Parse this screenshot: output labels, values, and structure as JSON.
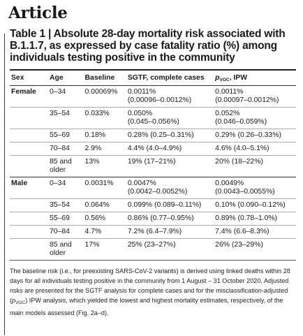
{
  "header": {
    "label": "Article"
  },
  "table": {
    "caption": "Table 1 | Absolute 28-day mortality risk associated with B.1.1.7, as expressed by case fatality ratio (%) among individuals testing positive in the community",
    "columns": [
      "Sex",
      "Age",
      "Baseline",
      "SGTF, complete cases",
      "p",
      "VOC",
      ", IPW"
    ],
    "groups": [
      {
        "sex": "Female",
        "rows": [
          {
            "age": "0–34",
            "baseline": "0.00069%",
            "sgtf": [
              "0.0011%",
              "(0.00096–0.0012%)"
            ],
            "ipw": [
              "0.0011%",
              "(0.00097–0.0012%)"
            ]
          },
          {
            "age": "35–54",
            "baseline": "0.033%",
            "sgtf": [
              "0.050%",
              "(0.045–0.056%)"
            ],
            "ipw": [
              "0.052%",
              "(0.046–0.059%)"
            ]
          },
          {
            "age": "55–69",
            "baseline": "0.18%",
            "sgtf": [
              "0.28% (0.25–0.31%)"
            ],
            "ipw": [
              "0.29% (0.26–0.33%)"
            ]
          },
          {
            "age": "70–84",
            "baseline": "2.9%",
            "sgtf": [
              "4.4% (4.0–4.9%)"
            ],
            "ipw": [
              "4.6% (4.0–5.1%)"
            ]
          },
          {
            "age": [
              "85 and",
              "older"
            ],
            "baseline": "13%",
            "sgtf": [
              "19% (17–21%)"
            ],
            "ipw": [
              "20% (18–22%)"
            ]
          }
        ]
      },
      {
        "sex": "Male",
        "rows": [
          {
            "age": "0–34",
            "baseline": "0.0031%",
            "sgtf": [
              "0.0047%",
              "(0.0042–0.0052%)"
            ],
            "ipw": [
              "0.0049%",
              "(0.0043–0.0055%)"
            ]
          },
          {
            "age": "35–54",
            "baseline": "0.064%",
            "sgtf": [
              "0.099% (0.089–0.11%)"
            ],
            "ipw": [
              "0.10% (0.090–0.12%)"
            ]
          },
          {
            "age": "55–69",
            "baseline": "0.56%",
            "sgtf": [
              "0.86% (0.77–0.95%)"
            ],
            "ipw": [
              "0.89% (0.78–1.0%)"
            ]
          },
          {
            "age": "70–84",
            "baseline": "4.7%",
            "sgtf": [
              "7.2% (6.4–7.9%)"
            ],
            "ipw": [
              "7.4% (6.6–8.3%)"
            ]
          },
          {
            "age": [
              "85 and",
              "older"
            ],
            "baseline": "17%",
            "sgtf": [
              "25% (23–27%)"
            ],
            "ipw": [
              "26% (23–29%)"
            ]
          }
        ]
      }
    ]
  },
  "footnote": {
    "part1": "The baseline risk (i.e., for preexisting SARS-CoV-2 variants) is derived using linked deaths within 28 days for all individuals testing positive in the community from 1 August – 31 October 2020. Adjusted risks are presented for the SGTF analysis for complete cases and for the misclassification-adjusted (",
    "p": "p",
    "sub": "VOC",
    "part2": ") IPW analysis, which yielded the lowest and highest mortality estimates, respectively, of the main models assessed (Fig. 2a–d)."
  }
}
